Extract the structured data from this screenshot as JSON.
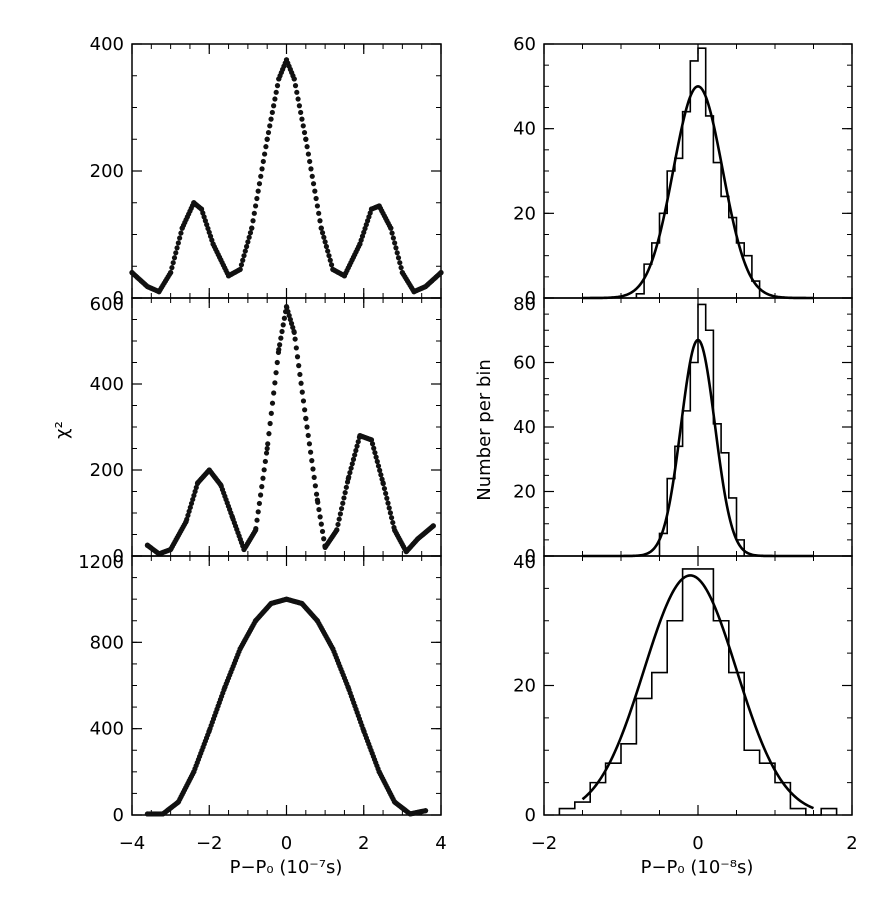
{
  "figure": {
    "left_ylabel": "χ²",
    "right_ylabel": "Number per bin",
    "left_xlabel": "P−P₀ (10⁻⁷s)",
    "right_xlabel": "P−P₀ (10⁻⁸s)"
  },
  "chart_data": [
    {
      "type": "scatter",
      "panel": "left-top",
      "xlim": [
        -4,
        4
      ],
      "ylim": [
        0,
        400
      ],
      "xticks": [
        -4,
        -2,
        0,
        2,
        4
      ],
      "yticks": [
        0,
        200,
        400
      ],
      "yticklabels": [
        "0",
        "200",
        "400"
      ],
      "model": {
        "kind": "damped-cosine",
        "peak": 370,
        "period": 2.35,
        "width": 1.85
      },
      "x": [
        -4.0,
        -3.6,
        -3.3,
        -3.0,
        -2.7,
        -2.4,
        -2.2,
        -1.9,
        -1.5,
        -1.2,
        -0.9,
        -0.5,
        -0.2,
        0.0,
        0.2,
        0.5,
        0.9,
        1.2,
        1.5,
        1.9,
        2.2,
        2.4,
        2.7,
        3.0,
        3.3,
        3.6,
        4.0
      ],
      "y": [
        40,
        18,
        10,
        40,
        110,
        150,
        140,
        85,
        35,
        45,
        110,
        250,
        345,
        375,
        345,
        250,
        110,
        45,
        35,
        85,
        140,
        145,
        110,
        40,
        10,
        18,
        40
      ]
    },
    {
      "type": "scatter",
      "panel": "left-middle",
      "xlim": [
        -4,
        4
      ],
      "ylim": [
        0,
        600
      ],
      "xticks": [
        -4,
        -2,
        0,
        2,
        4
      ],
      "yticks": [
        0,
        200,
        400,
        600
      ],
      "yticklabels": [
        "0",
        "200",
        "400",
        "600"
      ],
      "x": [
        -3.6,
        -3.3,
        -3.0,
        -2.6,
        -2.3,
        -2.0,
        -1.7,
        -1.4,
        -1.1,
        -0.8,
        -0.5,
        -0.2,
        0.0,
        0.2,
        0.5,
        0.8,
        1.0,
        1.3,
        1.6,
        1.9,
        2.2,
        2.5,
        2.8,
        3.1,
        3.4,
        3.8
      ],
      "y": [
        25,
        5,
        15,
        80,
        170,
        200,
        165,
        90,
        15,
        60,
        250,
        480,
        580,
        520,
        320,
        130,
        20,
        60,
        180,
        280,
        270,
        170,
        60,
        10,
        40,
        70
      ]
    },
    {
      "type": "scatter",
      "panel": "left-bottom",
      "xlim": [
        -4,
        4
      ],
      "ylim": [
        0,
        1200
      ],
      "xticks": [
        -4,
        -2,
        0,
        2,
        4
      ],
      "xticklabels": [
        "−4",
        "−2",
        "0",
        "2",
        "4"
      ],
      "yticks": [
        0,
        400,
        800,
        1200
      ],
      "yticklabels": [
        "0",
        "400",
        "800",
        "1200"
      ],
      "x": [
        -3.6,
        -3.2,
        -2.8,
        -2.4,
        -2.0,
        -1.6,
        -1.2,
        -0.8,
        -0.4,
        0.0,
        0.4,
        0.8,
        1.2,
        1.6,
        2.0,
        2.4,
        2.8,
        3.2,
        3.6
      ],
      "y": [
        5,
        5,
        60,
        200,
        390,
        590,
        770,
        900,
        980,
        1000,
        980,
        900,
        770,
        590,
        390,
        200,
        60,
        5,
        20
      ]
    },
    {
      "type": "histogram",
      "panel": "right-top",
      "xlim": [
        -2,
        2
      ],
      "ylim": [
        0,
        60
      ],
      "xticks": [
        -2,
        0,
        2
      ],
      "yticks": [
        0,
        20,
        40,
        60
      ],
      "yticklabels": [
        "0",
        "20",
        "40",
        "60"
      ],
      "bin_edges": [
        -0.8,
        -0.7,
        -0.6,
        -0.5,
        -0.4,
        -0.3,
        -0.2,
        -0.1,
        0.0,
        0.1,
        0.2,
        0.3,
        0.4,
        0.5,
        0.6,
        0.7,
        0.8
      ],
      "counts": [
        1,
        8,
        13,
        20,
        30,
        33,
        44,
        56,
        59,
        43,
        32,
        24,
        19,
        13,
        10,
        4
      ],
      "fit": {
        "kind": "gaussian",
        "amplitude": 50,
        "mean": 0.0,
        "sigma": 0.32
      }
    },
    {
      "type": "histogram",
      "panel": "right-middle",
      "xlim": [
        -2,
        2
      ],
      "ylim": [
        0,
        80
      ],
      "xticks": [
        -2,
        0,
        2
      ],
      "yticks": [
        0,
        20,
        40,
        60,
        80
      ],
      "yticklabels": [
        "0",
        "20",
        "40",
        "60",
        "80"
      ],
      "bin_edges": [
        -0.5,
        -0.4,
        -0.3,
        -0.2,
        -0.1,
        0.0,
        0.1,
        0.2,
        0.3,
        0.4,
        0.5,
        0.6
      ],
      "counts": [
        7,
        24,
        34,
        45,
        60,
        78,
        70,
        41,
        32,
        18,
        5
      ],
      "fit": {
        "kind": "gaussian",
        "amplitude": 67,
        "mean": 0.0,
        "sigma": 0.22
      }
    },
    {
      "type": "histogram",
      "panel": "right-bottom",
      "xlim": [
        -2,
        2
      ],
      "ylim": [
        0,
        40
      ],
      "xticks": [
        -2,
        0,
        2
      ],
      "xticklabels": [
        "−2",
        "0",
        "2"
      ],
      "yticks": [
        0,
        20,
        40
      ],
      "yticklabels": [
        "0",
        "20",
        "40"
      ],
      "bin_edges": [
        -1.8,
        -1.6,
        -1.4,
        -1.2,
        -1.0,
        -0.8,
        -0.6,
        -0.4,
        -0.2,
        0.0,
        0.2,
        0.4,
        0.6,
        0.8,
        1.0,
        1.2,
        1.4,
        1.6,
        1.8
      ],
      "counts": [
        1,
        2,
        5,
        8,
        11,
        18,
        22,
        30,
        38,
        38,
        30,
        22,
        10,
        8,
        5,
        1,
        0,
        1
      ],
      "fit": {
        "kind": "gaussian",
        "amplitude": 37,
        "mean": -0.1,
        "sigma": 0.6
      }
    }
  ]
}
